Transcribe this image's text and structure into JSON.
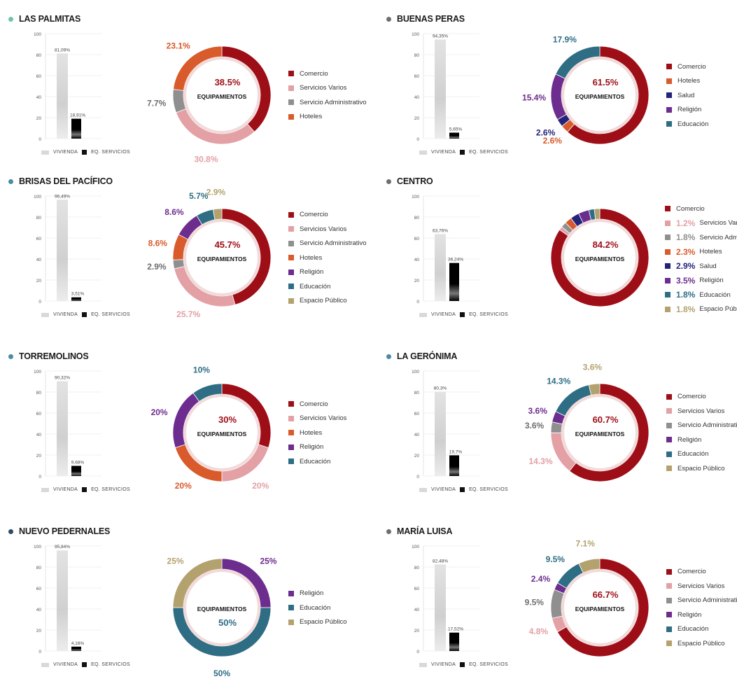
{
  "shared": {
    "center_label": "EQUIPAMIENTOS",
    "bar_legend": {
      "vivienda": "VIVIENDA",
      "servicios": "EQ. SERVICIOS"
    },
    "colors": {
      "comercio": "#9e0e17",
      "servicios_varios": "#e3a0a5",
      "servicio_administrativo": "#8f8f8f",
      "hoteles": "#d95a2b",
      "salud": "#23237a",
      "religion": "#6c2d8e",
      "educacion": "#2e6d84",
      "espacio_publico": "#b4a26e",
      "vivienda_bar": "#d9d9d9",
      "servicios_bar": "#111111",
      "dot": "#4a8ba7"
    }
  },
  "chart_data": [
    {
      "title": "LAS PALMITAS",
      "type": "bar",
      "dot_color": "#6cc6a6",
      "bar": {
        "categories": [
          "VIVIENDA",
          "EQ. SERVICIOS"
        ],
        "values": [
          81.09,
          18.91
        ],
        "labels": [
          "81,09%",
          "18,91%"
        ],
        "ylim": [
          0,
          100
        ],
        "yticks": [
          "0",
          "20",
          "40",
          "60",
          "80",
          "100"
        ]
      },
      "donut": {
        "type": "pie",
        "center_value": "38.5%",
        "slices": [
          {
            "name": "Comercio",
            "value": 38.5,
            "label": "38.5%",
            "color": "#9e0e17"
          },
          {
            "name": "Servicios Varios",
            "value": 30.8,
            "label": "30.8%",
            "color": "#e3a0a5"
          },
          {
            "name": "Servicio Administrativo",
            "value": 7.7,
            "label": "7.7%",
            "color": "#8f8f8f"
          },
          {
            "name": "Hoteles",
            "value": 23.1,
            "label": "23.1%",
            "color": "#d95a2b"
          }
        ]
      }
    },
    {
      "title": "BUENAS PERAS",
      "type": "bar",
      "dot_color": "#6e6e6e",
      "bar": {
        "categories": [
          "VIVIENDA",
          "EQ. SERVICIOS"
        ],
        "values": [
          94.35,
          5.65
        ],
        "labels": [
          "94,35%",
          "5,65%"
        ],
        "ylim": [
          0,
          100
        ],
        "yticks": [
          "0",
          "20",
          "40",
          "60",
          "80",
          "100"
        ]
      },
      "donut": {
        "type": "pie",
        "center_value": "61.5%",
        "slices": [
          {
            "name": "Comercio",
            "value": 61.5,
            "label": "61.5%",
            "color": "#9e0e17"
          },
          {
            "name": "Hoteles",
            "value": 2.6,
            "label": "2.6%",
            "color": "#d95a2b"
          },
          {
            "name": "Salud",
            "value": 2.6,
            "label": "2.6%",
            "color": "#23237a"
          },
          {
            "name": "Religión",
            "value": 15.4,
            "label": "15.4%",
            "color": "#6c2d8e"
          },
          {
            "name": "Educación",
            "value": 17.9,
            "label": "17.9%",
            "color": "#2e6d84"
          }
        ]
      }
    },
    {
      "title": "BRISAS DEL PACÍFICO",
      "type": "bar",
      "dot_color": "#4a8ba7",
      "bar": {
        "categories": [
          "VIVIENDA",
          "EQ. SERVICIOS"
        ],
        "values": [
          96.49,
          3.51
        ],
        "labels": [
          "96,49%",
          "3,51%"
        ],
        "ylim": [
          0,
          100
        ],
        "yticks": [
          "0",
          "20",
          "40",
          "60",
          "80",
          "100"
        ]
      },
      "donut": {
        "type": "pie",
        "center_value": "45.7%",
        "slices": [
          {
            "name": "Comercio",
            "value": 45.7,
            "label": "45.7%",
            "color": "#9e0e17"
          },
          {
            "name": "Servicios Varios",
            "value": 25.7,
            "label": "25.7%",
            "color": "#e3a0a5"
          },
          {
            "name": "Servicio Administrativo",
            "value": 2.9,
            "label": "2.9%",
            "color": "#8f8f8f"
          },
          {
            "name": "Hoteles",
            "value": 8.6,
            "label": "8.6%",
            "color": "#d95a2b"
          },
          {
            "name": "Religión",
            "value": 8.6,
            "label": "8.6%",
            "color": "#6c2d8e"
          },
          {
            "name": "Educación",
            "value": 5.7,
            "label": "5.7%",
            "color": "#2e6d84"
          },
          {
            "name": "Espacio Público",
            "value": 2.9,
            "label": "2.9%",
            "color": "#b4a26e"
          }
        ]
      }
    },
    {
      "title": "CENTRO",
      "type": "bar",
      "dot_color": "#6e6e6e",
      "bar": {
        "categories": [
          "VIVIENDA",
          "EQ. SERVICIOS"
        ],
        "values": [
          63.76,
          36.24
        ],
        "labels": [
          "63,76%",
          "36,24%"
        ],
        "ylim": [
          0,
          100
        ],
        "yticks": [
          "0",
          "20",
          "40",
          "60",
          "80",
          "100"
        ]
      },
      "donut": {
        "type": "pie",
        "center_value": "84.2%",
        "legend_with_values": true,
        "slices": [
          {
            "name": "Comercio",
            "value": 84.2,
            "label": "84.2%",
            "color": "#9e0e17"
          },
          {
            "name": "Servicios Varios",
            "value": 1.2,
            "label": "1.2%",
            "color": "#e3a0a5"
          },
          {
            "name": "Servicio Administrativo",
            "value": 1.8,
            "label": "1.8%",
            "color": "#8f8f8f"
          },
          {
            "name": "Hoteles",
            "value": 2.3,
            "label": "2.3%",
            "color": "#d95a2b"
          },
          {
            "name": "Salud",
            "value": 2.9,
            "label": "2.9%",
            "color": "#23237a"
          },
          {
            "name": "Religión",
            "value": 3.5,
            "label": "3.5%",
            "color": "#6c2d8e"
          },
          {
            "name": "Educación",
            "value": 1.8,
            "label": "1.8%",
            "color": "#2e6d84"
          },
          {
            "name": "Espacio Público",
            "value": 1.8,
            "label": "1.8%",
            "color": "#b4a26e"
          }
        ]
      }
    },
    {
      "title": "TORREMOLINOS",
      "type": "bar",
      "dot_color": "#4a8ba7",
      "bar": {
        "categories": [
          "VIVIENDA",
          "EQ. SERVICIOS"
        ],
        "values": [
          90.32,
          9.68
        ],
        "labels": [
          "90,32%",
          "9,68%"
        ],
        "ylim": [
          0,
          100
        ],
        "yticks": [
          "0",
          "20",
          "40",
          "60",
          "80",
          "100"
        ]
      },
      "donut": {
        "type": "pie",
        "center_value": "30%",
        "slices": [
          {
            "name": "Comercio",
            "value": 30,
            "label": "30%",
            "color": "#9e0e17"
          },
          {
            "name": "Servicios Varios",
            "value": 20,
            "label": "20%",
            "color": "#e3a0a5"
          },
          {
            "name": "Hoteles",
            "value": 20,
            "label": "20%",
            "color": "#d95a2b"
          },
          {
            "name": "Religión",
            "value": 20,
            "label": "20%",
            "color": "#6c2d8e"
          },
          {
            "name": "Educación",
            "value": 10,
            "label": "10%",
            "color": "#2e6d84"
          }
        ]
      }
    },
    {
      "title": "LA GERÓNIMA",
      "type": "bar",
      "dot_color": "#4a8ba7",
      "bar": {
        "categories": [
          "VIVIENDA",
          "EQ. SERVICIOS"
        ],
        "values": [
          80.3,
          19.7
        ],
        "labels": [
          "80,3%",
          "19,7%"
        ],
        "ylim": [
          0,
          100
        ],
        "yticks": [
          "0",
          "20",
          "40",
          "60",
          "80",
          "100"
        ]
      },
      "donut": {
        "type": "pie",
        "center_value": "60.7%",
        "slices": [
          {
            "name": "Comercio",
            "value": 60.7,
            "label": "60.7%",
            "color": "#9e0e17"
          },
          {
            "name": "Servicios Varios",
            "value": 14.3,
            "label": "14.3%",
            "color": "#e3a0a5"
          },
          {
            "name": "Servicio Administrativo",
            "value": 3.6,
            "label": "3.6%",
            "color": "#8f8f8f"
          },
          {
            "name": "Religión",
            "value": 3.6,
            "label": "3.6%",
            "color": "#6c2d8e"
          },
          {
            "name": "Educación",
            "value": 14.3,
            "label": "14.3%",
            "color": "#2e6d84"
          },
          {
            "name": "Espacio Público",
            "value": 3.6,
            "label": "3.6%",
            "color": "#b4a26e"
          }
        ]
      }
    },
    {
      "title": "NUEVO PEDERNALES",
      "type": "bar",
      "dot_color": "#2f4a66",
      "bar": {
        "categories": [
          "VIVIENDA",
          "EQ. SERVICIOS"
        ],
        "values": [
          95.84,
          4.16
        ],
        "labels": [
          "95,84%",
          "4,16%"
        ],
        "ylim": [
          0,
          100
        ],
        "yticks": [
          "0",
          "20",
          "40",
          "60",
          "80",
          "100"
        ]
      },
      "donut": {
        "type": "pie",
        "center_value": "50%",
        "slices": [
          {
            "name": "Religión",
            "value": 25,
            "label": "25%",
            "color": "#6c2d8e"
          },
          {
            "name": "Educación",
            "value": 50,
            "label": "50%",
            "color": "#2e6d84"
          },
          {
            "name": "Espacio Público",
            "value": 25,
            "label": "25%",
            "color": "#b4a26e"
          }
        ]
      }
    },
    {
      "title": "MARÍA LUISA",
      "type": "bar",
      "dot_color": "#6e6e6e",
      "bar": {
        "categories": [
          "VIVIENDA",
          "EQ. SERVICIOS"
        ],
        "values": [
          82.48,
          17.52
        ],
        "labels": [
          "82,48%",
          "17,52%"
        ],
        "ylim": [
          0,
          100
        ],
        "yticks": [
          "0",
          "20",
          "40",
          "60",
          "80",
          "100"
        ]
      },
      "donut": {
        "type": "pie",
        "center_value": "66.7%",
        "slices": [
          {
            "name": "Comercio",
            "value": 66.7,
            "label": "66.7%",
            "color": "#9e0e17"
          },
          {
            "name": "Servicios Varios",
            "value": 4.8,
            "label": "4.8%",
            "color": "#e3a0a5"
          },
          {
            "name": "Servicio Administrativo",
            "value": 9.5,
            "label": "9.5%",
            "color": "#8f8f8f"
          },
          {
            "name": "Religión",
            "value": 2.4,
            "label": "2.4%",
            "color": "#6c2d8e"
          },
          {
            "name": "Educación",
            "value": 9.5,
            "label": "9.5%",
            "color": "#2e6d84"
          },
          {
            "name": "Espacio Público",
            "value": 7.1,
            "label": "7.1%",
            "color": "#b4a26e"
          }
        ]
      }
    }
  ]
}
